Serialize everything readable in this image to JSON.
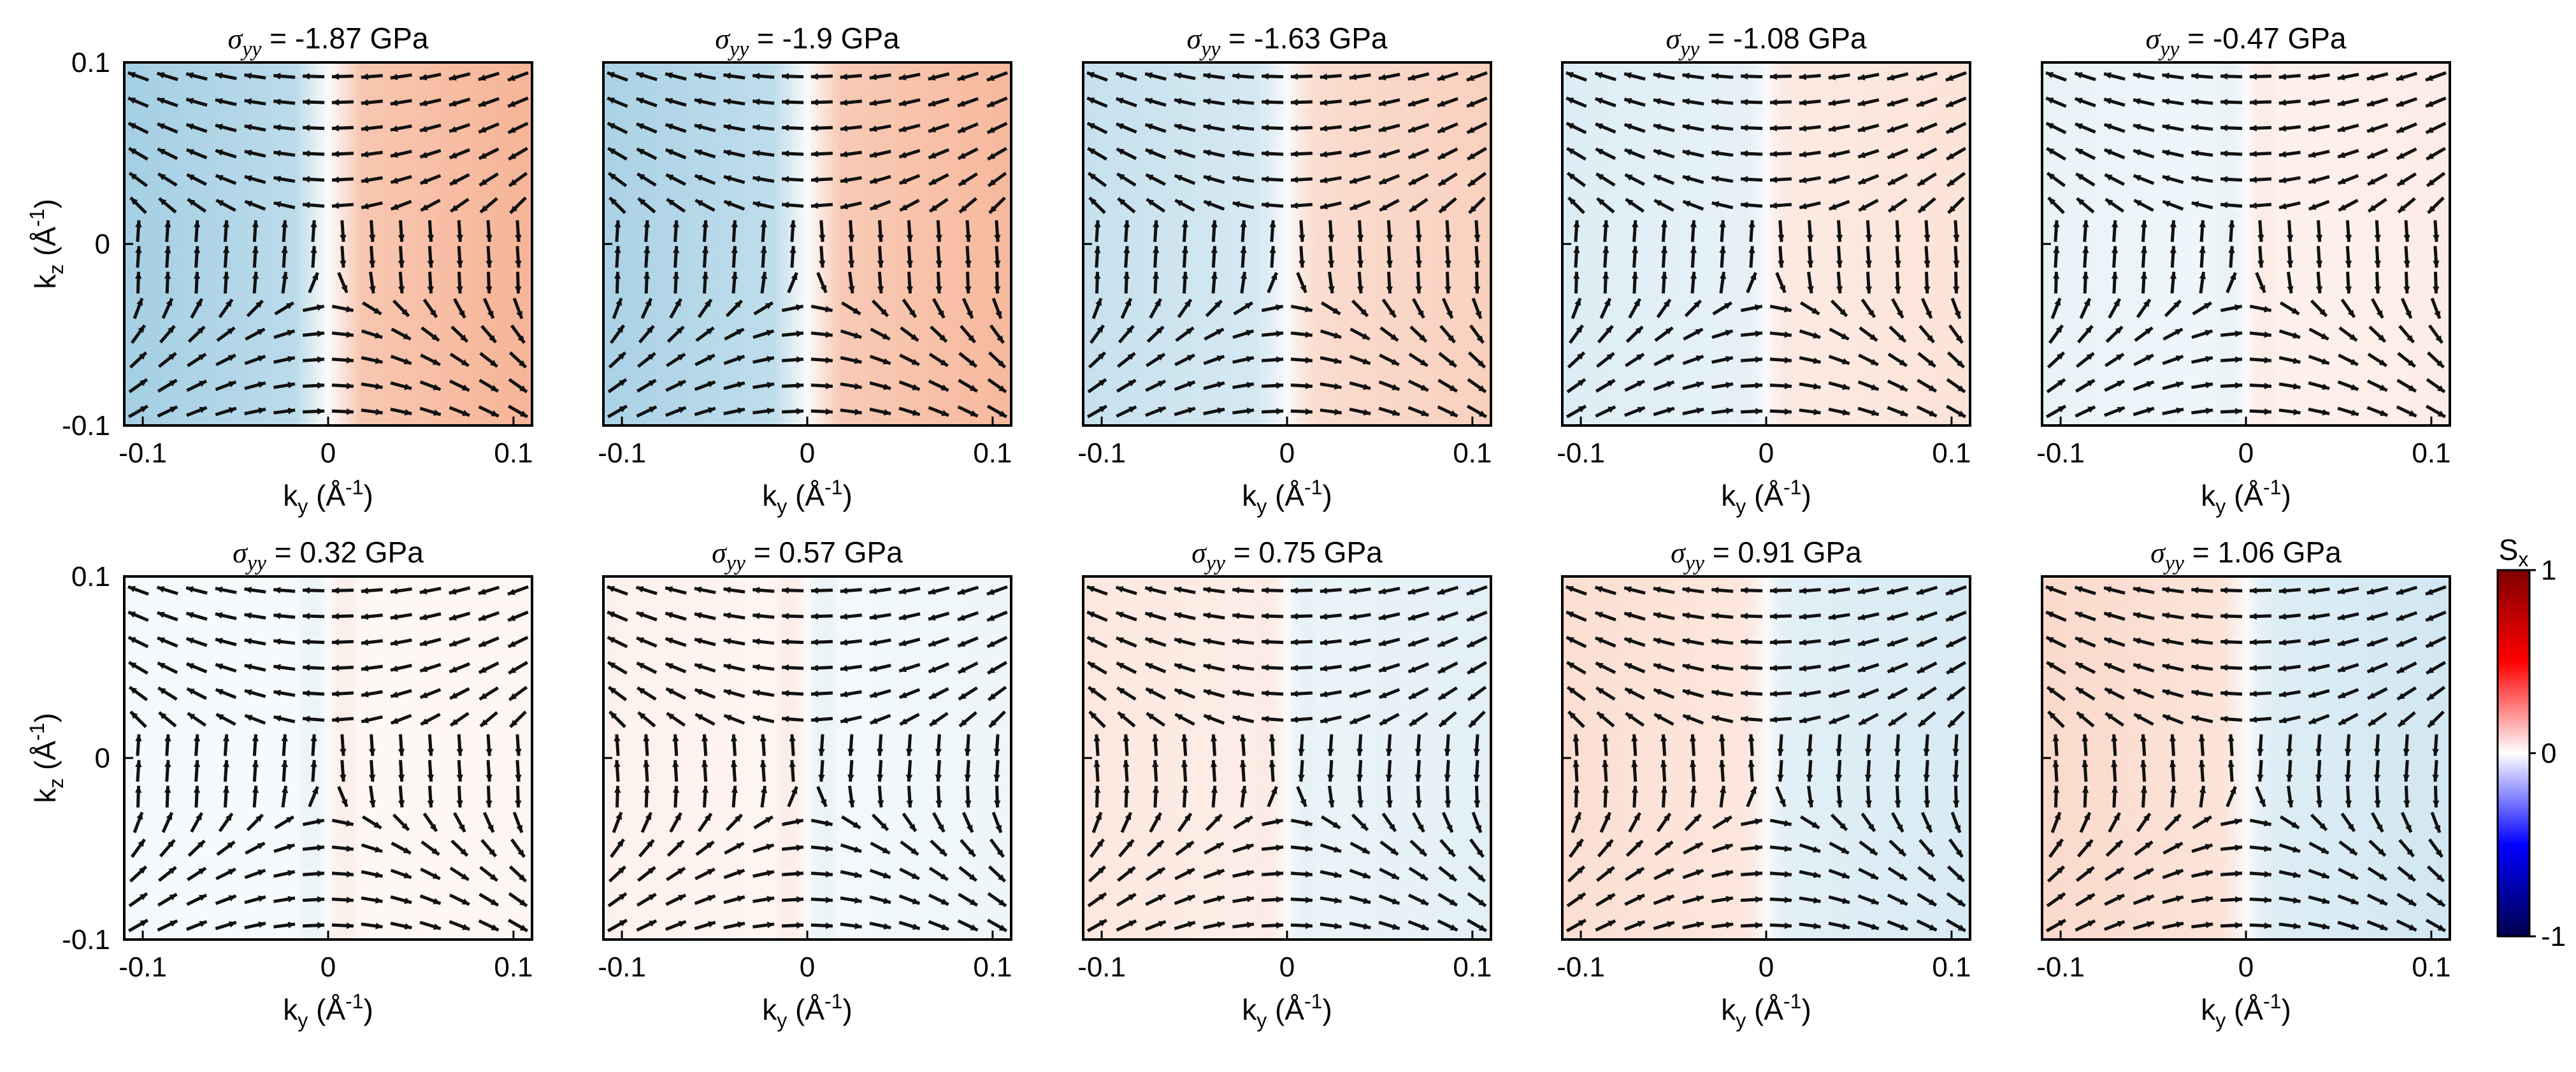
{
  "chart_data": {
    "type": "heatmap",
    "description_units": "Spin texture maps in the (k_y, k_z) plane with arrow field and S_x colormap",
    "xlabel": "k",
    "xlabel_sub": "y",
    "xlabel_units_pre": "(Å",
    "xlabel_units_sup": "-1",
    "xlabel_units_post": ")",
    "ylabel": "k",
    "ylabel_sub": "z",
    "ylabel_units_pre": "(Å",
    "ylabel_units_sup": "-1",
    "ylabel_units_post": ")",
    "xlim": [
      -0.11,
      0.11
    ],
    "ylim": [
      -0.1,
      0.1
    ],
    "xticks": [
      {
        "value": -0.1,
        "label": "-0.1"
      },
      {
        "value": 0,
        "label": "0"
      },
      {
        "value": 0.1,
        "label": "0.1"
      }
    ],
    "yticks": [
      {
        "value": 0.1,
        "label": "0.1"
      },
      {
        "value": 0,
        "label": "0"
      },
      {
        "value": -0.1,
        "label": "-0.1"
      }
    ],
    "title_symbol": "σ",
    "title_sub": "yy",
    "title_eq": "=",
    "title_unit": "GPa",
    "panels": [
      {
        "stress": -1.87,
        "label": "-1.87",
        "sx_amp": 0.32
      },
      {
        "stress": -1.9,
        "label": "-1.9",
        "sx_amp": 0.3
      },
      {
        "stress": -1.63,
        "label": "-1.63",
        "sx_amp": 0.2
      },
      {
        "stress": -1.08,
        "label": "-1.08",
        "sx_amp": 0.12
      },
      {
        "stress": -0.47,
        "label": "-0.47",
        "sx_amp": 0.08
      },
      {
        "stress": 0.32,
        "label": "0.32",
        "sx_amp": 0.04
      },
      {
        "stress": 0.57,
        "label": "0.57",
        "sx_amp": -0.06
      },
      {
        "stress": 0.75,
        "label": "0.75",
        "sx_amp": -0.1
      },
      {
        "stress": 0.91,
        "label": "0.91",
        "sx_amp": -0.14
      },
      {
        "stress": 1.06,
        "label": "1.06",
        "sx_amp": -0.16
      }
    ],
    "colorbar": {
      "label": "S",
      "label_sub": "x",
      "range": [
        -1,
        1
      ],
      "ticks": [
        {
          "value": 1,
          "label": "1"
        },
        {
          "value": 0,
          "label": "0"
        },
        {
          "value": -1,
          "label": "-1"
        }
      ],
      "colors": {
        "min": "#00004d",
        "low": "#0000ff",
        "mid": "#ffffff",
        "high": "#ff0000",
        "max": "#7f0000"
      }
    },
    "map_colors": {
      "positive": "#f4a582",
      "negative": "#92c5de",
      "neutral": "#f7f7f7"
    }
  }
}
